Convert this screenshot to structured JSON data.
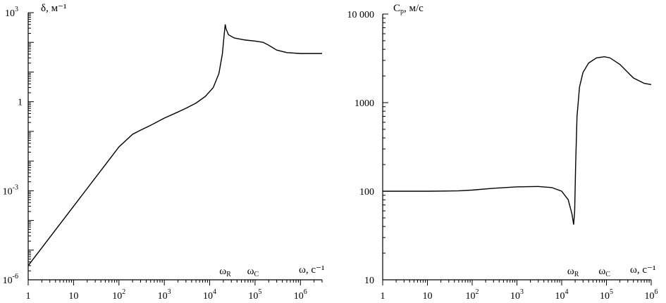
{
  "chart_data": [
    {
      "type": "line",
      "title": "",
      "ylabel": "δ, м⁻¹",
      "xlabel": "ω, с⁻¹",
      "x_scale": "log",
      "y_scale": "log",
      "xlim": [
        1,
        3000000
      ],
      "ylim": [
        1e-06,
        1000
      ],
      "x_ticks": [
        {
          "base": "1",
          "exp": ""
        },
        {
          "base": "10",
          "exp": ""
        },
        {
          "base": "10",
          "exp": "2"
        },
        {
          "base": "10",
          "exp": "3"
        },
        {
          "base": "10",
          "exp": "4"
        },
        {
          "base": "10",
          "exp": "5"
        },
        {
          "base": "10",
          "exp": "6"
        }
      ],
      "x_tick_values": [
        1,
        10,
        100,
        1000,
        10000,
        100000,
        1000000
      ],
      "y_ticks": [
        {
          "base": "10",
          "exp": "3"
        },
        {
          "base": "1",
          "exp": ""
        },
        {
          "base": "10",
          "exp": "-3"
        },
        {
          "base": "10",
          "exp": "-6"
        }
      ],
      "y_tick_values": [
        1000,
        1,
        0.001,
        1e-06
      ],
      "markers": [
        {
          "base": "ω",
          "sub": "R",
          "x": 22000
        },
        {
          "base": "ω",
          "sub": "C",
          "x": 90000
        }
      ],
      "series": [
        {
          "x": [
            1,
            2,
            5,
            10,
            20,
            50,
            100,
            200,
            300,
            500,
            1000,
            2000,
            3000,
            5000,
            8000,
            12000,
            16000,
            19000,
            21000,
            22000,
            23000,
            26000,
            35000,
            60000,
            100000,
            150000,
            200000,
            300000,
            500000,
            1000000,
            2000000,
            3000000
          ],
          "y": [
            3e-06,
            1.2e-05,
            7.5e-05,
            0.0003,
            0.0012,
            0.0075,
            0.03,
            0.08,
            0.11,
            0.16,
            0.28,
            0.45,
            0.6,
            0.9,
            1.5,
            3.0,
            9.0,
            40,
            200,
            400,
            280,
            180,
            140,
            120,
            110,
            100,
            80,
            55,
            45,
            42,
            42,
            42
          ]
        }
      ]
    },
    {
      "type": "line",
      "title": "",
      "ylabel": "C",
      "ylabel_sub": "p",
      "ylabel_unit": ", м/с",
      "xlabel": "ω, с⁻¹",
      "x_scale": "log",
      "y_scale": "log",
      "xlim": [
        1,
        1000000
      ],
      "ylim": [
        10,
        10000
      ],
      "x_ticks": [
        {
          "base": "1",
          "exp": ""
        },
        {
          "base": "10",
          "exp": ""
        },
        {
          "base": "10",
          "exp": "2"
        },
        {
          "base": "10",
          "exp": "3"
        },
        {
          "base": "10",
          "exp": "4"
        },
        {
          "base": "10",
          "exp": "5"
        },
        {
          "base": "10",
          "exp": "6"
        }
      ],
      "x_tick_values": [
        1,
        10,
        100,
        1000,
        10000,
        100000,
        1000000
      ],
      "y_ticks": [
        {
          "base": "10 000",
          "exp": ""
        },
        {
          "base": "1000",
          "exp": ""
        },
        {
          "base": "100",
          "exp": ""
        },
        {
          "base": "10",
          "exp": ""
        }
      ],
      "y_tick_values": [
        10000,
        1000,
        100,
        10
      ],
      "markers": [
        {
          "base": "ω",
          "sub": "R",
          "x": 18000
        },
        {
          "base": "ω",
          "sub": "C",
          "x": 90000
        }
      ],
      "series": [
        {
          "x": [
            1,
            10,
            50,
            100,
            300,
            1000,
            3000,
            6000,
            10000,
            14000,
            17000,
            18500,
            19500,
            20500,
            22000,
            25000,
            30000,
            40000,
            60000,
            90000,
            120000,
            200000,
            400000,
            700000,
            1000000
          ],
          "y": [
            100,
            100,
            101,
            103,
            108,
            112,
            113,
            110,
            100,
            80,
            55,
            42,
            60,
            200,
            700,
            1500,
            2200,
            2800,
            3200,
            3300,
            3200,
            2700,
            1900,
            1650,
            1600
          ]
        }
      ]
    }
  ]
}
